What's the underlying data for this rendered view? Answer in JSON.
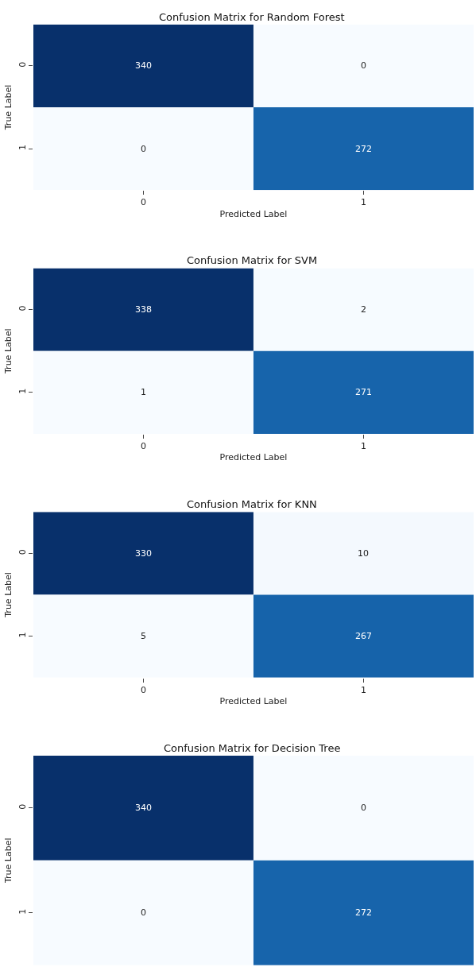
{
  "chart_data": [
    {
      "type": "heatmap",
      "title": "Confusion Matrix for Random Forest",
      "xlabel": "Predicted Label",
      "ylabel": "True Label",
      "categories": [
        "0",
        "1"
      ],
      "y_categories": [
        "0",
        "1"
      ],
      "cells": [
        [
          340,
          0
        ],
        [
          0,
          272
        ]
      ],
      "data_labels": true
    },
    {
      "type": "heatmap",
      "title": "Confusion Matrix for SVM",
      "xlabel": "Predicted Label",
      "ylabel": "True Label",
      "categories": [
        "0",
        "1"
      ],
      "y_categories": [
        "0",
        "1"
      ],
      "cells": [
        [
          338,
          2
        ],
        [
          1,
          271
        ]
      ],
      "data_labels": true
    },
    {
      "type": "heatmap",
      "title": "Confusion Matrix for KNN",
      "xlabel": "Predicted Label",
      "ylabel": "True Label",
      "categories": [
        "0",
        "1"
      ],
      "y_categories": [
        "0",
        "1"
      ],
      "cells": [
        [
          330,
          10
        ],
        [
          5,
          267
        ]
      ],
      "data_labels": true
    },
    {
      "type": "heatmap",
      "title": "Confusion Matrix for Decision Tree",
      "ylabel": "True Label",
      "categories": [
        "0",
        "1"
      ],
      "y_categories": [
        "0",
        "1"
      ],
      "cells": [
        [
          340,
          0
        ],
        [
          0,
          272
        ]
      ],
      "data_labels": true,
      "tick_labels": "y"
    }
  ]
}
